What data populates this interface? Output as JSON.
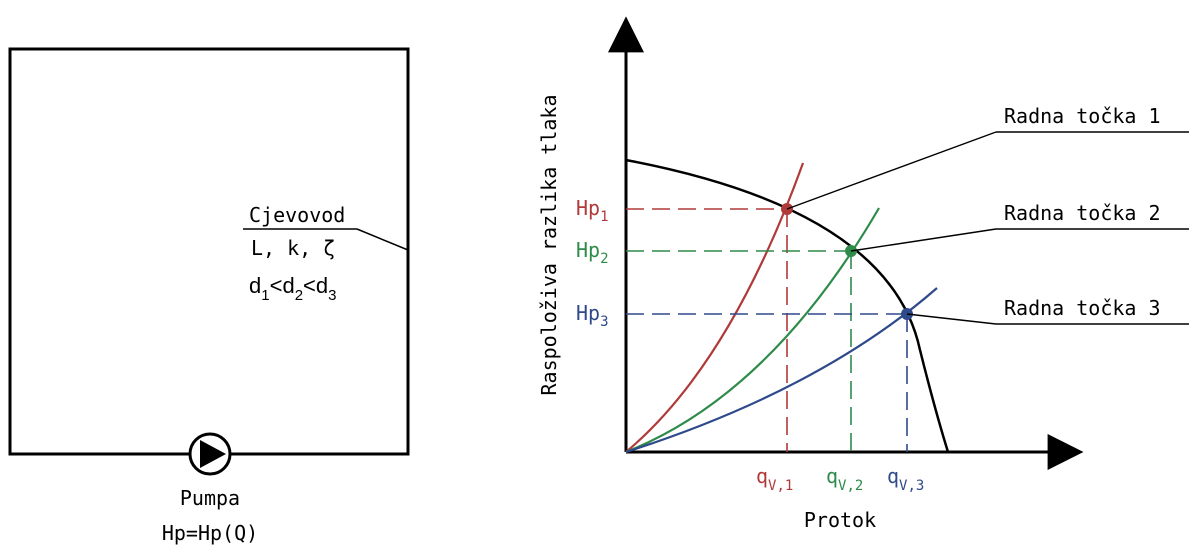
{
  "circuit": {
    "pipe_title": "Cjevovod",
    "pipe_params": "L, k, ζ",
    "diameter_relation": {
      "d": "d",
      "i1": "1",
      "lt1": "<",
      "i2": "2",
      "lt2": "<",
      "i3": "3"
    },
    "pump_label": "Pumpa",
    "pump_relation": "Hp=Hp(Q)"
  },
  "graph": {
    "ylabel": "Raspoloživa razlika tlaka",
    "xlabel": "Protok",
    "operating_points": [
      {
        "label": "Radna točka 1",
        "head_base": "Hp",
        "head_index": "1",
        "flow_base": "q",
        "flow_index": "V,1",
        "color": "#b03a3a"
      },
      {
        "label": "Radna točka 2",
        "head_base": "Hp",
        "head_index": "2",
        "flow_base": "q",
        "flow_index": "V,2",
        "color": "#2e8b4a"
      },
      {
        "label": "Radna točka 3",
        "head_base": "Hp",
        "head_index": "3",
        "flow_base": "q",
        "flow_index": "V,3",
        "color": "#2f4a8a"
      }
    ],
    "pump_curve_color": "#000000"
  }
}
